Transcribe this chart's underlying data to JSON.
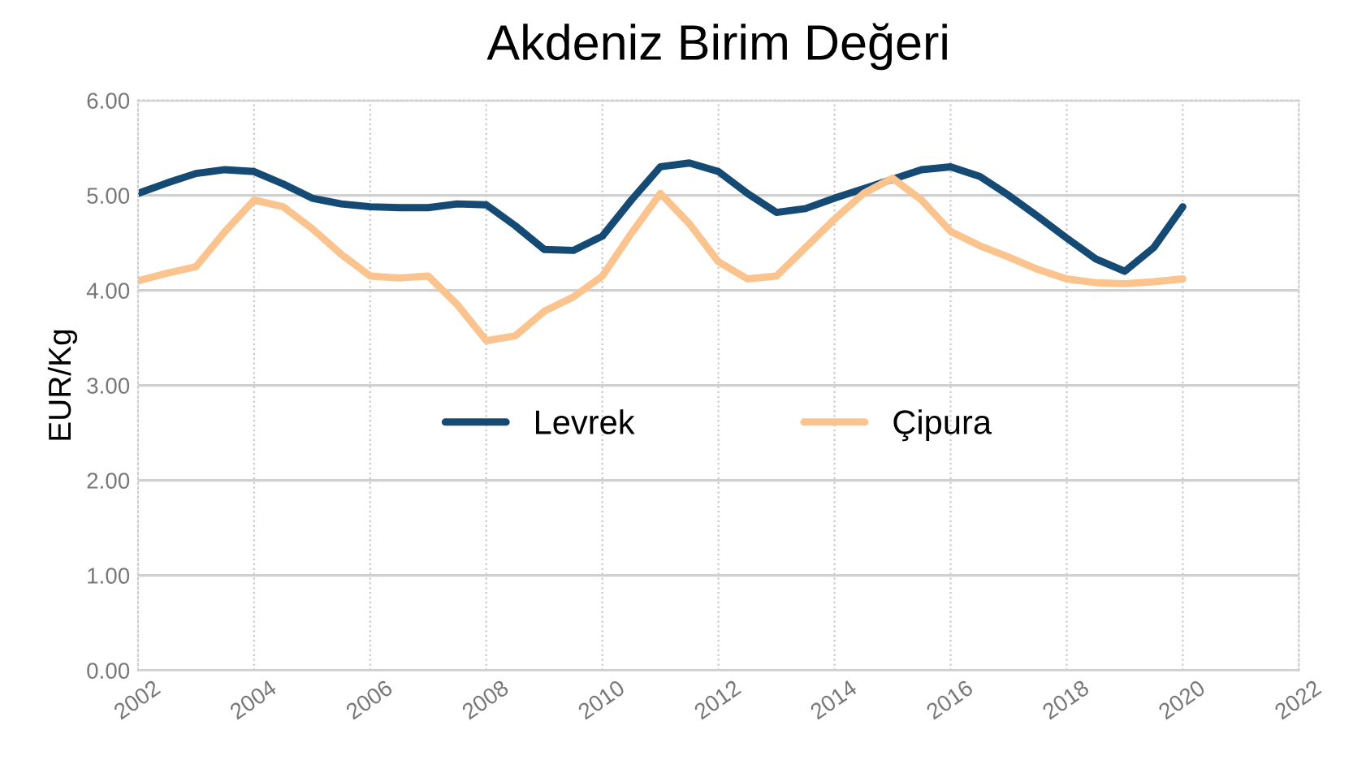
{
  "chart_data": {
    "type": "line",
    "title": "Akdeniz Birim Değeri",
    "ylabel": "EUR/Kg",
    "x": [
      2002,
      2002.5,
      2003,
      2003.5,
      2004,
      2004.5,
      2005,
      2005.5,
      2006,
      2006.5,
      2007,
      2007.5,
      2008,
      2008.5,
      2009,
      2009.5,
      2010,
      2010.5,
      2011,
      2011.5,
      2012,
      2012.5,
      2013,
      2013.5,
      2014,
      2014.5,
      2015,
      2015.5,
      2016,
      2016.5,
      2017,
      2017.5,
      2018,
      2018.5,
      2019,
      2019.5,
      2020
    ],
    "series": [
      {
        "name": "Levrek",
        "color": "#154a75",
        "values": [
          5.02,
          5.13,
          5.23,
          5.27,
          5.25,
          5.12,
          4.97,
          4.91,
          4.88,
          4.87,
          4.87,
          4.91,
          4.9,
          4.68,
          4.43,
          4.42,
          4.57,
          4.95,
          5.3,
          5.34,
          5.25,
          5.02,
          4.82,
          4.86,
          4.97,
          5.07,
          5.17,
          5.27,
          5.3,
          5.2,
          5.0,
          4.78,
          4.55,
          4.33,
          4.2,
          4.45,
          4.88
        ]
      },
      {
        "name": "Çipura",
        "color": "#fbc48e",
        "values": [
          4.1,
          4.18,
          4.25,
          4.62,
          4.95,
          4.88,
          4.65,
          4.38,
          4.15,
          4.13,
          4.15,
          3.85,
          3.47,
          3.52,
          3.78,
          3.93,
          4.15,
          4.6,
          5.02,
          4.7,
          4.3,
          4.12,
          4.15,
          4.45,
          4.75,
          5.02,
          5.18,
          4.95,
          4.62,
          4.47,
          4.35,
          4.22,
          4.12,
          4.08,
          4.07,
          4.09,
          4.12
        ]
      }
    ],
    "xlim": [
      2002,
      2022
    ],
    "xticks": [
      2002,
      2004,
      2006,
      2008,
      2010,
      2012,
      2014,
      2016,
      2018,
      2020,
      2022
    ],
    "ylim": [
      0,
      6
    ],
    "yticks": [
      {
        "value": 0,
        "label": "0.00"
      },
      {
        "value": 1,
        "label": "1.00"
      },
      {
        "value": 2,
        "label": "2.00"
      },
      {
        "value": 3,
        "label": "3.00"
      },
      {
        "value": 4,
        "label": "4.00"
      },
      {
        "value": 5,
        "label": "5.00"
      },
      {
        "value": 6,
        "label": "6.00"
      }
    ],
    "grid": true,
    "legend": "center",
    "marker": "none",
    "line_style": "solid"
  }
}
